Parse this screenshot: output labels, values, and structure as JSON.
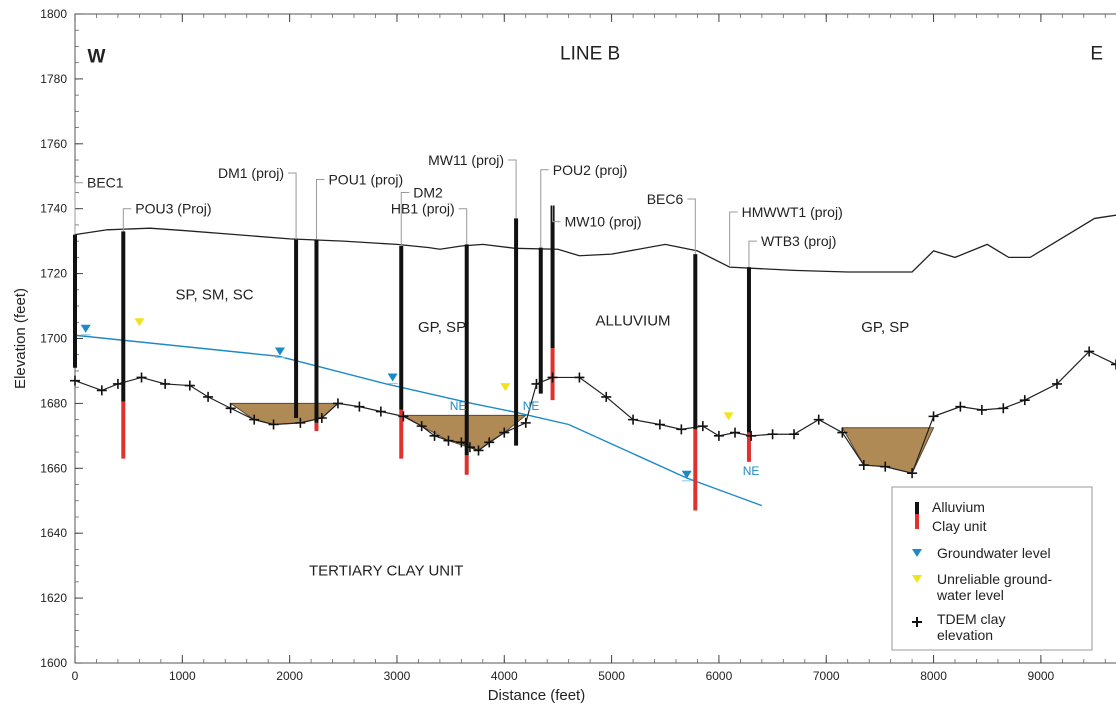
{
  "chart_data": {
    "type": "line",
    "title": "LINE B",
    "xlabel": "Distance (feet)",
    "ylabel": "Elevation (feet)",
    "xlim": [
      0,
      9700
    ],
    "ylim": [
      1600,
      1800
    ],
    "x_ticks": [
      0,
      1000,
      2000,
      3000,
      4000,
      5000,
      6000,
      7000,
      8000,
      9000
    ],
    "y_ticks": [
      1600,
      1620,
      1640,
      1660,
      1680,
      1700,
      1720,
      1740,
      1760,
      1780,
      1800
    ],
    "direction_labels": {
      "west": "W",
      "east": "E"
    },
    "ground_surface": [
      [
        0,
        1732
      ],
      [
        300,
        1733.5
      ],
      [
        700,
        1734
      ],
      [
        1000,
        1733.3
      ],
      [
        1500,
        1732
      ],
      [
        2000,
        1730.7
      ],
      [
        2500,
        1730
      ],
      [
        3000,
        1729
      ],
      [
        3300,
        1728
      ],
      [
        3400,
        1727.5
      ],
      [
        3600,
        1728.5
      ],
      [
        3800,
        1729
      ],
      [
        4100,
        1727.8
      ],
      [
        4500,
        1727.5
      ],
      [
        4700,
        1725.5
      ],
      [
        5000,
        1726
      ],
      [
        5500,
        1729
      ],
      [
        5800,
        1727
      ],
      [
        6100,
        1722
      ],
      [
        6700,
        1721
      ],
      [
        7200,
        1720.5
      ],
      [
        7500,
        1720.5
      ],
      [
        7800,
        1720.5
      ],
      [
        8000,
        1727
      ],
      [
        8200,
        1725
      ],
      [
        8500,
        1729
      ],
      [
        8700,
        1725
      ],
      [
        8900,
        1725
      ],
      [
        9300,
        1733
      ],
      [
        9500,
        1737
      ],
      [
        9700,
        1738
      ]
    ],
    "groundwater_line": [
      [
        0,
        1701
      ],
      [
        1900,
        1694.5
      ],
      [
        2900,
        1686
      ],
      [
        3700,
        1680
      ],
      [
        4100,
        1677.3
      ],
      [
        4600,
        1673.5
      ],
      [
        5700,
        1657
      ],
      [
        6400,
        1648.5
      ]
    ],
    "tdem_clay_elevation": [
      [
        0,
        1687
      ],
      [
        250,
        1684
      ],
      [
        400,
        1686
      ],
      [
        620,
        1688
      ],
      [
        840,
        1686
      ],
      [
        1070,
        1685.5
      ],
      [
        1240,
        1682
      ],
      [
        1450,
        1678.5
      ],
      [
        1670,
        1675
      ],
      [
        1850,
        1673.5
      ],
      [
        2100,
        1674
      ],
      [
        2300,
        1675.5
      ],
      [
        2450,
        1680
      ],
      [
        2650,
        1679
      ],
      [
        2850,
        1677.5
      ],
      [
        3060,
        1676
      ],
      [
        3230,
        1673
      ],
      [
        3350,
        1670
      ],
      [
        3480,
        1668.5
      ],
      [
        3600,
        1668
      ],
      [
        3680,
        1666.5
      ],
      [
        3760,
        1665.5
      ],
      [
        3860,
        1668
      ],
      [
        4000,
        1671
      ],
      [
        4200,
        1674
      ],
      [
        4300,
        1686
      ],
      [
        4450,
        1688
      ],
      [
        4700,
        1688
      ],
      [
        4950,
        1682
      ],
      [
        5200,
        1675
      ],
      [
        5450,
        1673.5
      ],
      [
        5650,
        1672
      ],
      [
        5850,
        1673
      ],
      [
        6000,
        1670
      ],
      [
        6150,
        1671
      ],
      [
        6300,
        1670
      ],
      [
        6500,
        1670.5
      ],
      [
        6700,
        1670.5
      ],
      [
        6930,
        1675
      ],
      [
        7150,
        1671
      ],
      [
        7350,
        1661
      ],
      [
        7550,
        1660.5
      ],
      [
        7800,
        1658.5
      ],
      [
        8000,
        1676
      ],
      [
        8250,
        1679
      ],
      [
        8450,
        1678
      ],
      [
        8650,
        1678.5
      ],
      [
        8850,
        1681
      ],
      [
        9150,
        1686
      ],
      [
        9450,
        1696
      ],
      [
        9700,
        1692
      ]
    ],
    "clay_pockets": [
      [
        [
          1450,
          1680
        ],
        [
          2450,
          1680
        ],
        [
          2300,
          1675.5
        ],
        [
          2100,
          1674
        ],
        [
          1850,
          1673.5
        ],
        [
          1670,
          1675
        ]
      ],
      [
        [
          3060,
          1676.3
        ],
        [
          4200,
          1676.3
        ],
        [
          4000,
          1671
        ],
        [
          3760,
          1665.5
        ],
        [
          3480,
          1668.5
        ],
        [
          3230,
          1673
        ]
      ],
      [
        [
          7150,
          1672.5
        ],
        [
          8000,
          1672.5
        ],
        [
          7800,
          1658.5
        ],
        [
          7550,
          1660.5
        ],
        [
          7350,
          1661
        ]
      ]
    ],
    "wells": [
      {
        "name": "BEC1",
        "x": 0,
        "top": 1732,
        "contact": 1691,
        "bottom": 1691,
        "label_elev": 1748,
        "label_x": 110
      },
      {
        "name": "POU3 (Proj)",
        "x": 450,
        "top": 1733,
        "contact": 1680.5,
        "bottom": 1663,
        "label_elev": 1740,
        "label_x": 720
      },
      {
        "name": "DM1 (proj)",
        "x": 2060,
        "top": 1730.5,
        "contact": 1675.5,
        "bottom": 1675.5,
        "label_elev": 1751,
        "label_x": 1780
      },
      {
        "name": "POU1 (proj)",
        "x": 2250,
        "top": 1730.5,
        "contact": 1674,
        "bottom": 1671.5,
        "label_elev": 1749,
        "label_x": 2590
      },
      {
        "name": "DM2",
        "x": 3040,
        "top": 1728.5,
        "contact": 1678,
        "bottom": 1663,
        "label_elev": 1745,
        "label_x": 3490
      },
      {
        "name": "HB1 (proj)",
        "x": 3650,
        "top": 1729,
        "contact": 1664,
        "bottom": 1658,
        "label_elev": 1740,
        "label_x": 3520
      },
      {
        "name": "MW11 (proj)",
        "x": 4110,
        "top": 1737,
        "contact": 1667,
        "bottom": 1667,
        "label_elev": 1755,
        "label_x": 3850
      },
      {
        "name": "POU2 (proj)",
        "x": 4340,
        "top": 1728,
        "contact": 1683,
        "bottom": 1683,
        "label_elev": 1752,
        "label_x": 4750
      },
      {
        "name": "MW10 (proj)",
        "x": 4450,
        "top": 1741,
        "contact": 1697,
        "bottom": 1681,
        "label_elev": 1736,
        "label_x": 4750
      },
      {
        "name": "BEC6",
        "x": 5780,
        "top": 1726,
        "contact": 1672,
        "bottom": 1647,
        "label_elev": 1743,
        "label_x": 5470
      },
      {
        "name": "HMWWT1 (proj)",
        "x": 6100,
        "top": 1722.5,
        "contact": 1722.5,
        "bottom": 1722.5,
        "label_elev": 1739,
        "label_x": 6700
      },
      {
        "name": "WTB3 (proj)",
        "x": 6280,
        "top": 1722,
        "contact": 1671,
        "bottom": 1662,
        "label_elev": 1730,
        "label_x": 6760
      }
    ],
    "groundwater_markers": [
      {
        "x": 100,
        "elev": 1703,
        "reliable": true
      },
      {
        "x": 600,
        "elev": 1705,
        "reliable": false
      },
      {
        "x": 1910,
        "elev": 1696,
        "reliable": true
      },
      {
        "x": 2960,
        "elev": 1688,
        "reliable": true
      },
      {
        "x": 4010,
        "elev": 1685,
        "reliable": false
      },
      {
        "x": 5700,
        "elev": 1658,
        "reliable": true
      },
      {
        "x": 6090,
        "elev": 1676,
        "reliable": false
      }
    ],
    "annotations": [
      {
        "text": "SP, SM, SC",
        "x": 1300,
        "elev": 1712,
        "color": "#222"
      },
      {
        "text": "GP, SP",
        "x": 3420,
        "elev": 1702,
        "color": "#222"
      },
      {
        "text": "ALLUVIUM",
        "x": 5200,
        "elev": 1704,
        "color": "#222"
      },
      {
        "text": "GP, SP",
        "x": 7550,
        "elev": 1702,
        "color": "#222"
      },
      {
        "text": "TERTIARY CLAY UNIT",
        "x": 2900,
        "elev": 1627,
        "color": "#222"
      },
      {
        "text": "NE",
        "x": 3570,
        "elev": 1678,
        "color": "#1c89c8"
      },
      {
        "text": "NE",
        "x": 4250,
        "elev": 1678,
        "color": "#1c89c8"
      },
      {
        "text": "NE",
        "x": 6300,
        "elev": 1658,
        "color": "#1c89c8"
      }
    ],
    "legend_position": "bottom-right",
    "legend": [
      {
        "key": "alluvium",
        "lines": [
          "Alluvium"
        ]
      },
      {
        "key": "clay",
        "lines": [
          "Clay unit"
        ]
      },
      {
        "key": "groundwater",
        "lines": [
          "Groundwater level"
        ]
      },
      {
        "key": "unreliable",
        "lines": [
          "Unreliable ground-",
          "water level"
        ]
      },
      {
        "key": "tdem",
        "lines": [
          "TDEM clay",
          "elevation"
        ]
      }
    ],
    "colors": {
      "alluvium": "#111111",
      "clay": "#e0312c",
      "groundwater": "#1c89c8",
      "unreliable": "#f2e31a",
      "clay_pocket": "#b08a55",
      "ground_line": "#222222"
    }
  }
}
